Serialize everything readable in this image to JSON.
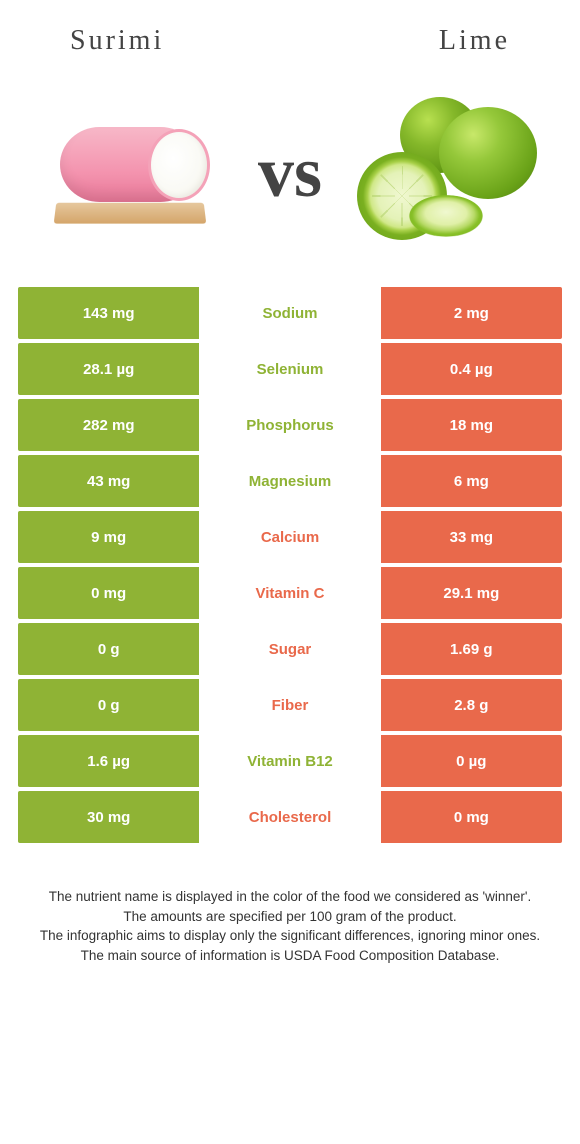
{
  "colors": {
    "left": "#8fb335",
    "right": "#e9694b",
    "mid_bg": "#ffffff"
  },
  "header": {
    "left_title": "Surimi",
    "right_title": "Lime"
  },
  "vs_label": "vs",
  "rows": [
    {
      "left": "143 mg",
      "label": "Sodium",
      "right": "2 mg",
      "winner": "left"
    },
    {
      "left": "28.1 µg",
      "label": "Selenium",
      "right": "0.4 µg",
      "winner": "left"
    },
    {
      "left": "282 mg",
      "label": "Phosphorus",
      "right": "18 mg",
      "winner": "left"
    },
    {
      "left": "43 mg",
      "label": "Magnesium",
      "right": "6 mg",
      "winner": "left"
    },
    {
      "left": "9 mg",
      "label": "Calcium",
      "right": "33 mg",
      "winner": "right"
    },
    {
      "left": "0 mg",
      "label": "Vitamin C",
      "right": "29.1 mg",
      "winner": "right"
    },
    {
      "left": "0 g",
      "label": "Sugar",
      "right": "1.69 g",
      "winner": "right"
    },
    {
      "left": "0 g",
      "label": "Fiber",
      "right": "2.8 g",
      "winner": "right"
    },
    {
      "left": "1.6 µg",
      "label": "Vitamin B12",
      "right": "0 µg",
      "winner": "left"
    },
    {
      "left": "30 mg",
      "label": "Cholesterol",
      "right": "0 mg",
      "winner": "right"
    }
  ],
  "footer": {
    "line1": "The nutrient name is displayed in the color of the food we considered as 'winner'.",
    "line2": "The amounts are specified per 100 gram of the product.",
    "line3": "The infographic aims to display only the significant differences, ignoring minor ones.",
    "line4": "The main source of information is USDA Food Composition Database."
  }
}
